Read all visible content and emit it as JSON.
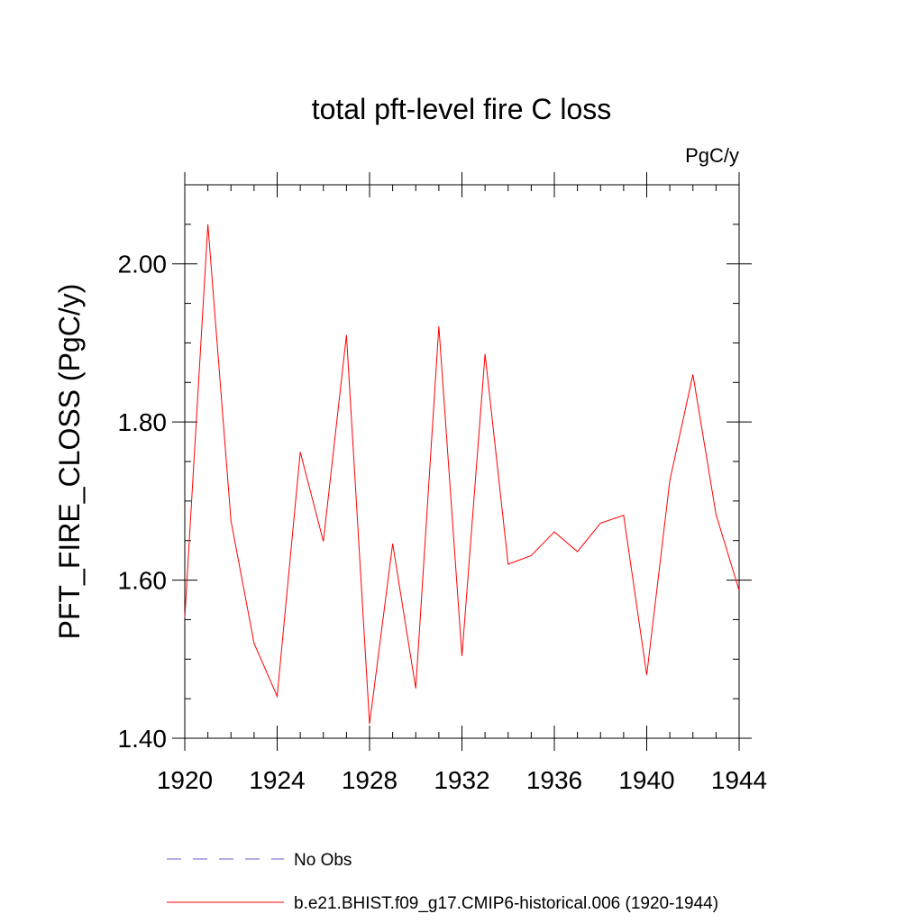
{
  "chart_data": {
    "type": "line",
    "title": "total pft-level fire C loss",
    "units_label": "PgC/y",
    "ylabel": "PFT_FIRE_CLOSS  (PgC/y)",
    "xlabel": "",
    "xlim": [
      1920,
      1944
    ],
    "ylim": [
      1.4,
      2.1
    ],
    "x_ticks": [
      1920,
      1924,
      1928,
      1932,
      1936,
      1940,
      1944
    ],
    "x_tick_labels": [
      "1920",
      "1924",
      "1928",
      "1932",
      "1936",
      "1940",
      "1944"
    ],
    "y_ticks": [
      1.4,
      1.6,
      1.8,
      2.0
    ],
    "y_tick_labels": [
      "1.40",
      "1.60",
      "1.80",
      "2.00"
    ],
    "grid": false,
    "legend_position": "bottom",
    "series": [
      {
        "name": "b.e21.BHIST.f09_g17.CMIP6-historical.006 (1920-1944)",
        "color": "#ff0000",
        "style": "solid",
        "x": [
          1920,
          1921,
          1922,
          1923,
          1924,
          1925,
          1926,
          1927,
          1928,
          1929,
          1930,
          1931,
          1932,
          1933,
          1934,
          1935,
          1936,
          1937,
          1938,
          1939,
          1940,
          1941,
          1942,
          1943,
          1944
        ],
        "values": [
          1.553,
          2.05,
          1.675,
          1.52,
          1.453,
          1.762,
          1.649,
          1.91,
          1.418,
          1.646,
          1.463,
          1.921,
          1.504,
          1.886,
          1.62,
          1.631,
          1.661,
          1.636,
          1.672,
          1.682,
          1.48,
          1.726,
          1.86,
          1.683,
          1.587
        ]
      }
    ],
    "legend": [
      {
        "label": "No Obs",
        "color": "#6a5acd",
        "style": "dashed"
      },
      {
        "label": "b.e21.BHIST.f09_g17.CMIP6-historical.006 (1920-1944)",
        "color": "#ff0000",
        "style": "solid"
      }
    ]
  }
}
